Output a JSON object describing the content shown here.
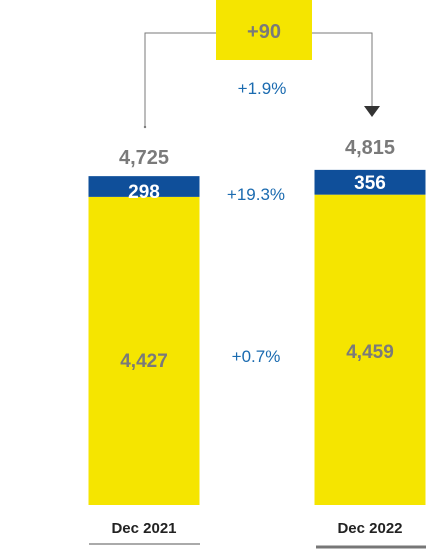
{
  "chart_data": {
    "type": "bar",
    "stacked": true,
    "categories": [
      "Dec 2021",
      "Dec 2022"
    ],
    "series": [
      {
        "values": [
          4427,
          4459
        ],
        "labels": [
          "4,427",
          "4,459"
        ],
        "color": "#f5e500"
      },
      {
        "values": [
          298,
          356
        ],
        "labels": [
          "298",
          "356"
        ],
        "color": "#0f4f9a"
      }
    ],
    "totals": {
      "values": [
        4725,
        4815
      ],
      "labels": [
        "4,725",
        "4,815"
      ]
    },
    "change": {
      "label": "+90",
      "percent": "+1.9%"
    },
    "growth_labels": [
      "+19.3%",
      "+0.7%"
    ],
    "colors": {
      "text_gray": "#7a7a7a",
      "growth_blue": "#1b6bb0",
      "bar_yellow": "#f5e500",
      "bar_blue": "#0f4f9a",
      "badge_yellow": "#f5e500"
    }
  }
}
